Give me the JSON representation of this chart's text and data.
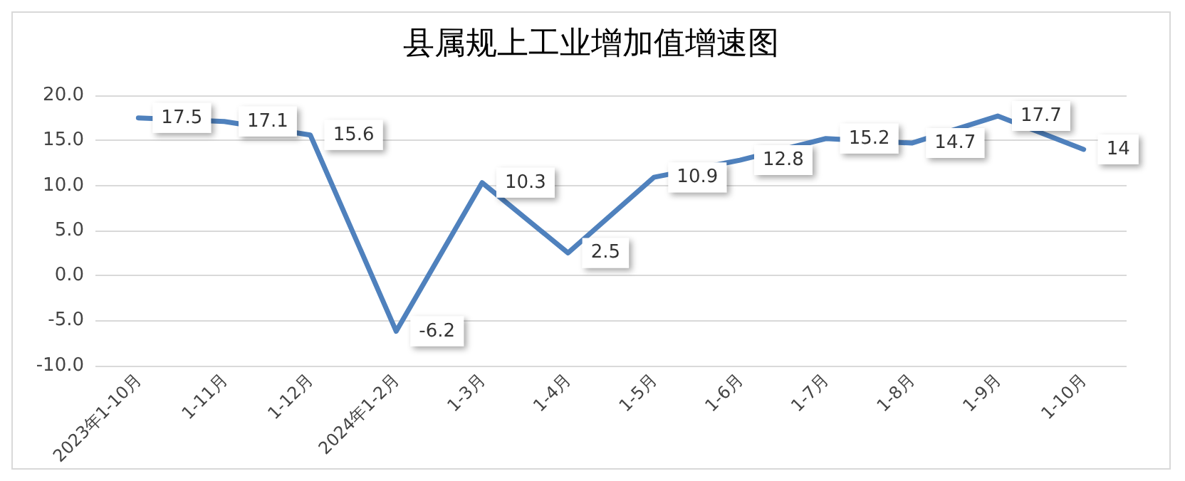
{
  "chart_data": {
    "type": "line",
    "title": "县属规上工业增加值增速图",
    "categories": [
      "2023年1-10月",
      "1-11月",
      "1-12月",
      "2024年1-2月",
      "1-3月",
      "1-4月",
      "1-5月",
      "1-6月",
      "1-7月",
      "1-8月",
      "1-9月",
      "1-10月"
    ],
    "series": [
      {
        "color": "#4f81bd",
        "values": [
          17.5,
          17.1,
          15.6,
          -6.2,
          10.3,
          2.5,
          10.9,
          12.8,
          15.2,
          14.7,
          17.7,
          14
        ]
      }
    ],
    "ylim": [
      -10,
      20
    ],
    "yticks": [
      {
        "value": -10,
        "label": "-10.0"
      },
      {
        "value": -5,
        "label": "-5.0"
      },
      {
        "value": 0,
        "label": "0.0"
      },
      {
        "value": 5,
        "label": "5.0"
      },
      {
        "value": 10,
        "label": "10.0"
      },
      {
        "value": 15,
        "label": "15.0"
      },
      {
        "value": 20,
        "label": "20.0"
      }
    ],
    "grid": "y",
    "marker": "none",
    "line_style": "solid",
    "data_labels": true
  }
}
